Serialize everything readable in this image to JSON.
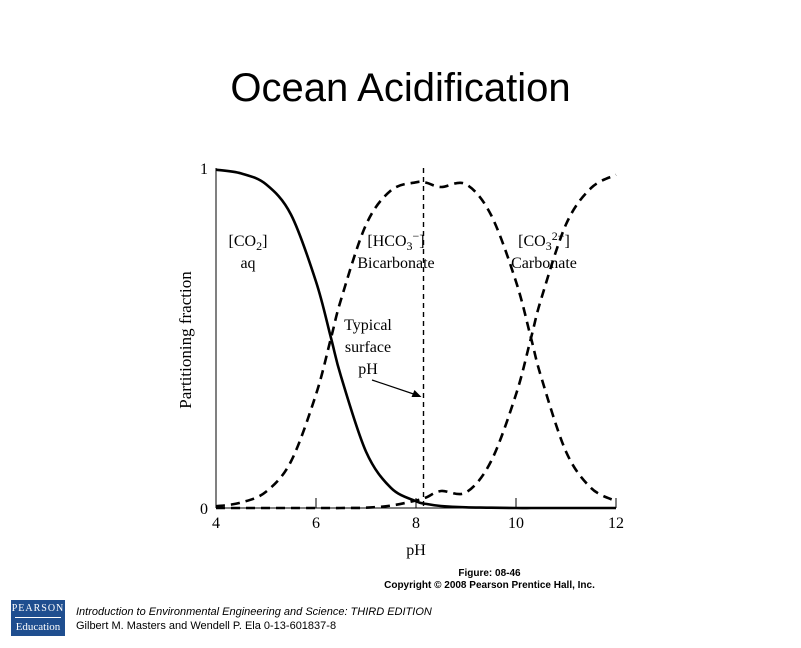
{
  "slide": {
    "title": "Ocean Acidification"
  },
  "caption": {
    "figure": "Figure: 08-46",
    "copyright": "Copyright © 2008 Pearson Prentice Hall, Inc."
  },
  "logo": {
    "line1": "PEARSON",
    "line2": "Education"
  },
  "footer": {
    "line1": "Introduction to Environmental Engineering and Science: THIRD EDITION",
    "line2": "Gilbert M. Masters and Wendell P. Ela  0-13-601837-8"
  },
  "chart_data": {
    "type": "line",
    "title": "",
    "xlabel": "pH",
    "ylabel": "Partitioning fraction",
    "xlim": [
      4,
      12
    ],
    "ylim": [
      0,
      1
    ],
    "x_ticks": [
      "4",
      "6",
      "8",
      "10",
      "12"
    ],
    "y_ticks": [
      "0",
      "1"
    ],
    "grid": false,
    "pKa1": 6.3,
    "pKa2": 10.3,
    "x": [
      4,
      4.5,
      5,
      5.5,
      6,
      6.3,
      6.5,
      7,
      7.5,
      8,
      8.2,
      8.5,
      9,
      9.5,
      10,
      10.3,
      10.5,
      11,
      11.5,
      12
    ],
    "series": [
      {
        "name": "[CO2] aq",
        "line_style": "solid",
        "values": [
          0.995,
          0.984,
          0.952,
          0.863,
          0.666,
          0.5,
          0.387,
          0.166,
          0.059,
          0.02,
          0.012,
          0.006,
          0.002,
          0.001,
          0.0,
          0.0,
          0.0,
          0.0,
          0.0,
          0.0
        ]
      },
      {
        "name": "[HCO3−] Bicarbonate",
        "line_style": "dashed",
        "values": [
          0.005,
          0.016,
          0.048,
          0.137,
          0.334,
          0.5,
          0.613,
          0.833,
          0.934,
          0.958,
          0.957,
          0.944,
          0.952,
          0.862,
          0.666,
          0.5,
          0.387,
          0.166,
          0.059,
          0.02
        ]
      },
      {
        "name": "[CO32−] Carbonate",
        "line_style": "dashed",
        "values": [
          0.0,
          0.0,
          0.0,
          0.0,
          0.0,
          0.0,
          0.0,
          0.001,
          0.007,
          0.022,
          0.031,
          0.05,
          0.046,
          0.137,
          0.334,
          0.5,
          0.613,
          0.834,
          0.941,
          0.98
        ]
      }
    ],
    "reference_line": {
      "x": 8.15,
      "style": "dashed"
    },
    "annotations": [
      {
        "id": "co2",
        "line1": "[CO",
        "sub1": "2",
        "line1b": "]",
        "line2": "aq"
      },
      {
        "id": "hco3",
        "line1": "[HCO",
        "sub1": "3",
        "sup1": "−",
        "line1b": "]",
        "line2": "Bicarbonate"
      },
      {
        "id": "co3",
        "line1": "[CO",
        "sub1": "3",
        "sup1": "2−",
        "line1b": "]",
        "line2": "Carbonate"
      },
      {
        "id": "typical",
        "lines": [
          "Typical",
          "surface",
          "pH"
        ]
      }
    ]
  }
}
